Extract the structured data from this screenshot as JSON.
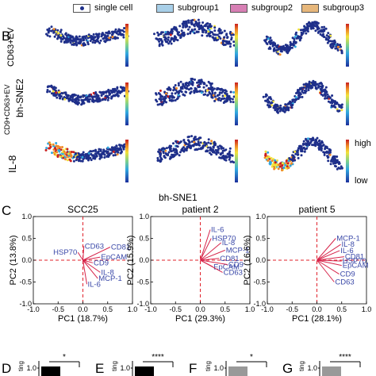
{
  "legend": {
    "items": [
      {
        "label": "single cell",
        "color": "#ffffff"
      },
      {
        "label": "subgroup1",
        "color": "#a8cfe8"
      },
      {
        "label": "subgroup2",
        "color": "#d77fb4"
      },
      {
        "label": "subgroup3",
        "color": "#e7b77b"
      }
    ]
  },
  "panelB": {
    "letter": "B",
    "rows": [
      "CD63+EV",
      "CD9+CD63+EV",
      "IL-8"
    ],
    "ylabel": "bh-SNE2",
    "xlabel": "bh-SNE1",
    "colorbar_high": "high",
    "colorbar_low": "low"
  },
  "panelC": {
    "letter": "C"
  },
  "panelBottom": {
    "letters": [
      "D",
      "E",
      "F",
      "G"
    ],
    "tick": "1.0",
    "stars": [
      "*",
      "****",
      "*",
      "****"
    ],
    "ylabel_fragment": "ting"
  },
  "colors": {
    "vector": "#d6244a",
    "label": "#3a48a8",
    "dash": "#e0202a",
    "dot": "#1e2f8a"
  },
  "chart_data": [
    {
      "type": "scatter",
      "title": "SCC25",
      "xlabel": "PC1 (18.7%)",
      "ylabel": "PC2 (13.8%)",
      "xlim": [
        -1.0,
        1.0
      ],
      "ylim": [
        -1.0,
        1.0
      ],
      "xticks": [
        "-1.0",
        "-0.5",
        "0.0",
        "0.5",
        "1.0"
      ],
      "yticks": [
        "-1.0",
        "-0.5",
        "0.0",
        "0.5",
        "1.0"
      ],
      "vectors": [
        {
          "label": "CD63",
          "x": 0.02,
          "y": 0.32
        },
        {
          "label": "CD81",
          "x": 0.55,
          "y": 0.3
        },
        {
          "label": "HSP70",
          "x": -0.1,
          "y": 0.18
        },
        {
          "label": "EpCAM",
          "x": 0.35,
          "y": 0.07
        },
        {
          "label": "CD9",
          "x": 0.2,
          "y": -0.06
        },
        {
          "label": "IL-8",
          "x": 0.35,
          "y": -0.28
        },
        {
          "label": "MCP-1",
          "x": 0.3,
          "y": -0.42
        },
        {
          "label": "IL-6",
          "x": 0.08,
          "y": -0.55
        }
      ]
    },
    {
      "type": "scatter",
      "title": "patient 2",
      "xlabel": "PC1 (29.3%)",
      "ylabel": "PC2 (15.9%)",
      "xlim": [
        -1.0,
        1.0
      ],
      "ylim": [
        -1.0,
        1.0
      ],
      "xticks": [
        "-1.0",
        "-0.5",
        "0.0",
        "0.5",
        "1.0"
      ],
      "yticks": [
        "-1.0",
        "-0.5",
        "0.0",
        "0.5",
        "1.0"
      ],
      "vectors": [
        {
          "label": "IL-6",
          "x": 0.2,
          "y": 0.7
        },
        {
          "label": "HSP70",
          "x": 0.22,
          "y": 0.5
        },
        {
          "label": "IL-8",
          "x": 0.42,
          "y": 0.4
        },
        {
          "label": "MCP-1",
          "x": 0.5,
          "y": 0.23
        },
        {
          "label": "CD81",
          "x": 0.38,
          "y": 0.04
        },
        {
          "label": "EpCAM",
          "x": 0.25,
          "y": -0.15
        },
        {
          "label": "CD9",
          "x": 0.55,
          "y": -0.1
        },
        {
          "label": "CD63",
          "x": 0.45,
          "y": -0.28
        }
      ]
    },
    {
      "type": "scatter",
      "title": "patient 5",
      "xlabel": "PC1 (28.1%)",
      "ylabel": "PC2 (16.6%)",
      "xlim": [
        -1.0,
        1.0
      ],
      "ylim": [
        -1.0,
        1.0
      ],
      "xticks": [
        "-1.0",
        "-0.5",
        "0.0",
        "0.5",
        "1.0"
      ],
      "yticks": [
        "-1.0",
        "-0.5",
        "0.0",
        "0.5",
        "1.0"
      ],
      "vectors": [
        {
          "label": "MCP-1",
          "x": 0.38,
          "y": 0.5
        },
        {
          "label": "IL-8",
          "x": 0.48,
          "y": 0.36
        },
        {
          "label": "IL-6",
          "x": 0.46,
          "y": 0.22
        },
        {
          "label": "CD81",
          "x": 0.55,
          "y": 0.08
        },
        {
          "label": "HSP70",
          "x": 0.5,
          "y": -0.02
        },
        {
          "label": "EpCAM",
          "x": 0.5,
          "y": -0.12
        },
        {
          "label": "CD9",
          "x": 0.45,
          "y": -0.32
        },
        {
          "label": "CD63",
          "x": 0.35,
          "y": -0.5
        }
      ]
    }
  ]
}
